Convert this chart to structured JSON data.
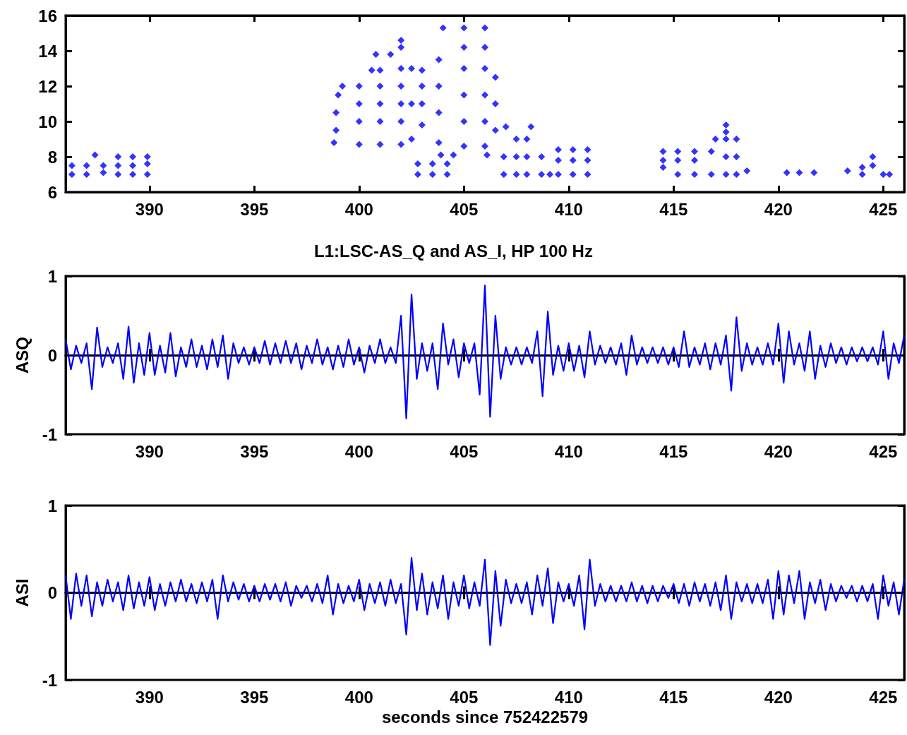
{
  "chart_data": [
    {
      "type": "scatter",
      "marker": "diamond",
      "xlim": [
        386,
        426
      ],
      "xticks": [
        390,
        395,
        400,
        405,
        410,
        415,
        420,
        425
      ],
      "ylim": [
        6,
        16
      ],
      "yticks": [
        6,
        8,
        10,
        12,
        14,
        16
      ],
      "series": [
        {
          "color": "#0000ff",
          "x": [
            386.3,
            386.3,
            387.0,
            387.0,
            387.4,
            387.8,
            387.8,
            388.5,
            388.5,
            388.5,
            389.2,
            389.2,
            389.2,
            389.9,
            389.9,
            389.9,
            398.8,
            398.9,
            398.9,
            399.0,
            399.2,
            400.0,
            400.0,
            400.0,
            400.0,
            400.6,
            400.8,
            401.0,
            401.0,
            401.0,
            401.0,
            401.0,
            401.5,
            402.0,
            402.0,
            402.0,
            402.0,
            402.0,
            402.0,
            402.0,
            402.5,
            402.5,
            402.5,
            402.8,
            402.8,
            403.5,
            403.5,
            403.9,
            404.2,
            404.2,
            404.5,
            403.0,
            403.0,
            403.0,
            403.0,
            403.8,
            403.8,
            403.8,
            403.8,
            404.0,
            405.0,
            405.0,
            405.0,
            405.0,
            405.0,
            405.0,
            406.0,
            406.0,
            406.0,
            406.0,
            406.0,
            406.0,
            406.5,
            406.5,
            406.5,
            406.1,
            406.9,
            406.9,
            407.0,
            407.5,
            407.5,
            407.5,
            408.0,
            408.0,
            408.0,
            408.2,
            408.7,
            408.7,
            409.1,
            409.5,
            409.5,
            409.5,
            410.2,
            410.2,
            410.2,
            410.9,
            410.9,
            410.9,
            414.5,
            414.5,
            414.5,
            415.2,
            415.2,
            415.2,
            416.0,
            416.0,
            416.0,
            416.8,
            416.8,
            417.0,
            417.5,
            417.5,
            417.5,
            417.5,
            417.5,
            418.0,
            418.0,
            418.0,
            418.5,
            420.4,
            421.0,
            421.7,
            423.3,
            424.0,
            424.0,
            424.5,
            424.5,
            425.0,
            425.3
          ],
          "values": [
            7.0,
            7.5,
            7.0,
            7.5,
            8.1,
            7.1,
            7.5,
            7.0,
            7.5,
            8.0,
            7.0,
            7.5,
            8.0,
            7.0,
            7.6,
            8.0,
            8.8,
            9.5,
            10.5,
            11.5,
            12.0,
            8.7,
            10.0,
            11.0,
            12.0,
            12.9,
            13.8,
            8.7,
            10.0,
            11.0,
            12.0,
            12.9,
            13.8,
            8.7,
            10.0,
            11.0,
            12.0,
            13.0,
            14.2,
            14.6,
            9.0,
            11.0,
            13.0,
            7.0,
            7.6,
            7.0,
            7.6,
            8.1,
            7.0,
            7.6,
            8.1,
            9.8,
            11.0,
            12.0,
            12.9,
            8.8,
            10.5,
            12.0,
            13.5,
            15.3,
            8.6,
            10.0,
            11.5,
            13.0,
            14.2,
            15.3,
            8.6,
            10.0,
            11.5,
            13.0,
            14.2,
            15.3,
            9.5,
            11.0,
            12.5,
            8.1,
            7.0,
            8.0,
            9.7,
            7.0,
            8.0,
            9.0,
            7.0,
            8.0,
            9.0,
            9.7,
            7.0,
            8.0,
            7.0,
            7.0,
            7.8,
            8.4,
            7.0,
            7.8,
            8.4,
            7.0,
            7.8,
            8.4,
            7.4,
            7.8,
            8.3,
            7.0,
            7.8,
            8.3,
            7.0,
            7.8,
            8.3,
            7.0,
            8.3,
            9.0,
            7.0,
            8.0,
            9.0,
            9.4,
            9.8,
            7.0,
            8.0,
            9.0,
            7.2,
            7.1,
            7.1,
            7.1,
            7.2,
            7.0,
            7.4,
            8.0,
            7.5,
            7.0,
            7.0
          ]
        }
      ]
    },
    {
      "type": "line",
      "marker": "none",
      "title": "L1:LSC-AS_Q and AS_I, HP 100 Hz",
      "ylabel": "ASQ",
      "xlim": [
        386,
        426
      ],
      "xticks": [
        390,
        395,
        400,
        405,
        410,
        415,
        420,
        425
      ],
      "ylim": [
        -1,
        1
      ],
      "yticks": [
        -1,
        0,
        1
      ],
      "series": [
        {
          "color": "#0000ff",
          "x": [
            386,
            386.25,
            386.5,
            386.75,
            387,
            387.25,
            387.5,
            387.75,
            388,
            388.25,
            388.5,
            388.75,
            389,
            389.25,
            389.5,
            389.75,
            390,
            390.25,
            390.5,
            390.75,
            391,
            391.25,
            391.5,
            391.75,
            392,
            392.25,
            392.5,
            392.75,
            393,
            393.25,
            393.5,
            393.75,
            394,
            394.25,
            394.5,
            394.75,
            395,
            395.25,
            395.5,
            395.75,
            396,
            396.25,
            396.5,
            396.75,
            397,
            397.25,
            397.5,
            397.75,
            398,
            398.25,
            398.5,
            398.75,
            399,
            399.25,
            399.5,
            399.75,
            400,
            400.25,
            400.5,
            400.75,
            401,
            401.25,
            401.5,
            401.75,
            402,
            402.25,
            402.5,
            402.75,
            403,
            403.25,
            403.5,
            403.75,
            404,
            404.25,
            404.5,
            404.75,
            405,
            405.25,
            405.5,
            405.75,
            406,
            406.25,
            406.5,
            406.75,
            407,
            407.25,
            407.5,
            407.75,
            408,
            408.25,
            408.5,
            408.75,
            409,
            409.25,
            409.5,
            409.75,
            410,
            410.25,
            410.5,
            410.75,
            411,
            411.25,
            411.5,
            411.75,
            412,
            412.25,
            412.5,
            412.75,
            413,
            413.25,
            413.5,
            413.75,
            414,
            414.25,
            414.5,
            414.75,
            415,
            415.25,
            415.5,
            415.75,
            416,
            416.25,
            416.5,
            416.75,
            417,
            417.25,
            417.5,
            417.75,
            418,
            418.25,
            418.5,
            418.75,
            419,
            419.25,
            419.5,
            419.75,
            420,
            420.25,
            420.5,
            420.75,
            421,
            421.25,
            421.5,
            421.75,
            422,
            422.25,
            422.5,
            422.75,
            423,
            423.25,
            423.5,
            423.75,
            424,
            424.25,
            424.5,
            424.75,
            425,
            425.25,
            425.5,
            425.75,
            426
          ],
          "values": [
            0.2,
            -0.18,
            0.12,
            -0.1,
            0.15,
            -0.43,
            0.35,
            -0.15,
            0.1,
            -0.1,
            0.15,
            -0.3,
            0.36,
            -0.35,
            0.15,
            -0.25,
            0.28,
            -0.25,
            0.12,
            -0.22,
            0.28,
            -0.27,
            0.1,
            -0.15,
            0.2,
            -0.15,
            0.12,
            -0.18,
            0.2,
            -0.15,
            0.25,
            -0.3,
            0.15,
            -0.1,
            0.1,
            -0.12,
            0.1,
            -0.1,
            0.18,
            -0.12,
            0.15,
            -0.1,
            0.18,
            -0.1,
            0.15,
            -0.18,
            0.12,
            -0.1,
            0.2,
            -0.12,
            0.1,
            -0.18,
            0.12,
            -0.15,
            0.2,
            -0.12,
            0.1,
            -0.22,
            0.12,
            -0.1,
            0.2,
            -0.1,
            0.1,
            -0.1,
            0.5,
            -0.8,
            0.77,
            -0.3,
            0.15,
            -0.2,
            0.15,
            -0.43,
            0.4,
            -0.12,
            0.2,
            -0.28,
            0.15,
            -0.1,
            0.15,
            -0.5,
            0.88,
            -0.78,
            0.5,
            -0.3,
            0.1,
            -0.12,
            0.1,
            -0.12,
            0.1,
            -0.1,
            0.3,
            -0.52,
            0.55,
            -0.25,
            0.12,
            -0.2,
            0.15,
            -0.2,
            0.12,
            -0.28,
            0.3,
            -0.12,
            0.12,
            -0.1,
            0.1,
            -0.12,
            0.15,
            -0.25,
            0.25,
            -0.12,
            0.1,
            -0.1,
            0.1,
            -0.1,
            0.1,
            -0.12,
            0.1,
            -0.15,
            0.3,
            -0.15,
            0.1,
            -0.12,
            0.15,
            -0.18,
            0.15,
            -0.12,
            0.25,
            -0.45,
            0.48,
            -0.2,
            0.15,
            -0.12,
            0.1,
            -0.12,
            0.15,
            -0.12,
            0.4,
            -0.35,
            0.3,
            -0.12,
            0.15,
            -0.2,
            0.3,
            -0.3,
            0.12,
            -0.15,
            0.15,
            -0.1,
            0.1,
            -0.12,
            0.1,
            -0.08,
            0.1,
            -0.08,
            0.1,
            -0.12,
            0.3,
            -0.3,
            0.15,
            -0.1,
            0.25
          ]
        }
      ]
    },
    {
      "type": "line",
      "marker": "none",
      "ylabel": "ASI",
      "xlabel": "seconds since 752422579",
      "xlim": [
        386,
        426
      ],
      "xticks": [
        390,
        395,
        400,
        405,
        410,
        415,
        420,
        425
      ],
      "ylim": [
        -1,
        1
      ],
      "yticks": [
        -1,
        0,
        1
      ],
      "series": [
        {
          "color": "#0000ff",
          "x": [
            386,
            386.25,
            386.5,
            386.75,
            387,
            387.25,
            387.5,
            387.75,
            388,
            388.25,
            388.5,
            388.75,
            389,
            389.25,
            389.5,
            389.75,
            390,
            390.25,
            390.5,
            390.75,
            391,
            391.25,
            391.5,
            391.75,
            392,
            392.25,
            392.5,
            392.75,
            393,
            393.25,
            393.5,
            393.75,
            394,
            394.25,
            394.5,
            394.75,
            395,
            395.25,
            395.5,
            395.75,
            396,
            396.25,
            396.5,
            396.75,
            397,
            397.25,
            397.5,
            397.75,
            398,
            398.25,
            398.5,
            398.75,
            399,
            399.25,
            399.5,
            399.75,
            400,
            400.25,
            400.5,
            400.75,
            401,
            401.25,
            401.5,
            401.75,
            402,
            402.25,
            402.5,
            402.75,
            403,
            403.25,
            403.5,
            403.75,
            404,
            404.25,
            404.5,
            404.75,
            405,
            405.25,
            405.5,
            405.75,
            406,
            406.25,
            406.5,
            406.75,
            407,
            407.25,
            407.5,
            407.75,
            408,
            408.25,
            408.5,
            408.75,
            409,
            409.25,
            409.5,
            409.75,
            410,
            410.25,
            410.5,
            410.75,
            411,
            411.25,
            411.5,
            411.75,
            412,
            412.25,
            412.5,
            412.75,
            413,
            413.25,
            413.5,
            413.75,
            414,
            414.25,
            414.5,
            414.75,
            415,
            415.25,
            415.5,
            415.75,
            416,
            416.25,
            416.5,
            416.75,
            417,
            417.25,
            417.5,
            417.75,
            418,
            418.25,
            418.5,
            418.75,
            419,
            419.25,
            419.5,
            419.75,
            420,
            420.25,
            420.5,
            420.75,
            421,
            421.25,
            421.5,
            421.75,
            422,
            422.25,
            422.5,
            422.75,
            423,
            423.25,
            423.5,
            423.75,
            424,
            424.25,
            424.5,
            424.75,
            425,
            425.25,
            425.5,
            425.75,
            426
          ],
          "values": [
            0.2,
            -0.3,
            0.22,
            -0.15,
            0.2,
            -0.27,
            0.12,
            -0.15,
            0.15,
            -0.1,
            0.12,
            -0.2,
            0.2,
            -0.18,
            0.12,
            -0.15,
            0.18,
            -0.2,
            0.1,
            -0.15,
            0.12,
            -0.1,
            0.15,
            -0.1,
            0.1,
            -0.12,
            0.12,
            -0.1,
            0.15,
            -0.3,
            0.2,
            -0.1,
            0.12,
            -0.08,
            0.1,
            -0.1,
            0.08,
            -0.1,
            0.1,
            -0.08,
            0.1,
            -0.1,
            0.12,
            -0.15,
            0.08,
            -0.06,
            0.08,
            -0.1,
            0.1,
            -0.12,
            0.2,
            -0.25,
            0.1,
            -0.12,
            0.08,
            -0.1,
            0.15,
            -0.2,
            0.1,
            -0.12,
            0.12,
            -0.15,
            0.15,
            -0.12,
            0.1,
            -0.48,
            0.4,
            -0.2,
            0.22,
            -0.25,
            0.12,
            -0.18,
            0.2,
            -0.3,
            0.12,
            -0.15,
            0.2,
            -0.18,
            0.12,
            -0.15,
            0.38,
            -0.6,
            0.25,
            -0.38,
            0.15,
            -0.12,
            0.1,
            -0.12,
            0.12,
            -0.25,
            0.2,
            -0.15,
            0.28,
            -0.35,
            0.12,
            -0.1,
            0.1,
            -0.15,
            0.2,
            -0.42,
            0.38,
            -0.15,
            0.1,
            -0.1,
            0.08,
            -0.1,
            0.08,
            -0.1,
            0.12,
            -0.1,
            0.08,
            -0.12,
            0.08,
            -0.1,
            0.08,
            -0.06,
            0.1,
            -0.12,
            0.1,
            -0.15,
            0.12,
            -0.1,
            0.1,
            -0.15,
            0.12,
            -0.2,
            0.2,
            -0.3,
            0.12,
            -0.1,
            0.1,
            -0.12,
            0.1,
            -0.12,
            0.15,
            -0.3,
            0.25,
            -0.25,
            0.2,
            -0.12,
            0.25,
            -0.3,
            0.12,
            -0.12,
            0.15,
            -0.2,
            0.1,
            -0.1,
            0.08,
            -0.06,
            0.08,
            -0.1,
            0.08,
            -0.1,
            0.1,
            -0.3,
            0.2,
            -0.15,
            0.12,
            -0.25,
            0.15
          ]
        }
      ]
    }
  ]
}
